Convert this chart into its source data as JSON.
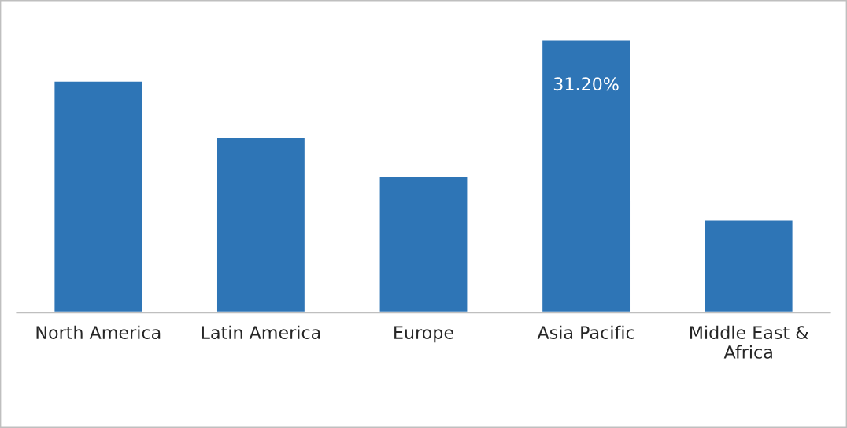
{
  "chart_data": {
    "type": "bar",
    "categories": [
      "North America",
      "Latin America",
      "Europe",
      "Asia Pacific",
      "Middle East &\nAfrica"
    ],
    "values": [
      26.5,
      20.0,
      15.6,
      31.2,
      10.6
    ],
    "value_labels": [
      null,
      null,
      null,
      "31.20%",
      null
    ],
    "color": "#2e75b6",
    "grid": false,
    "legend": false
  }
}
